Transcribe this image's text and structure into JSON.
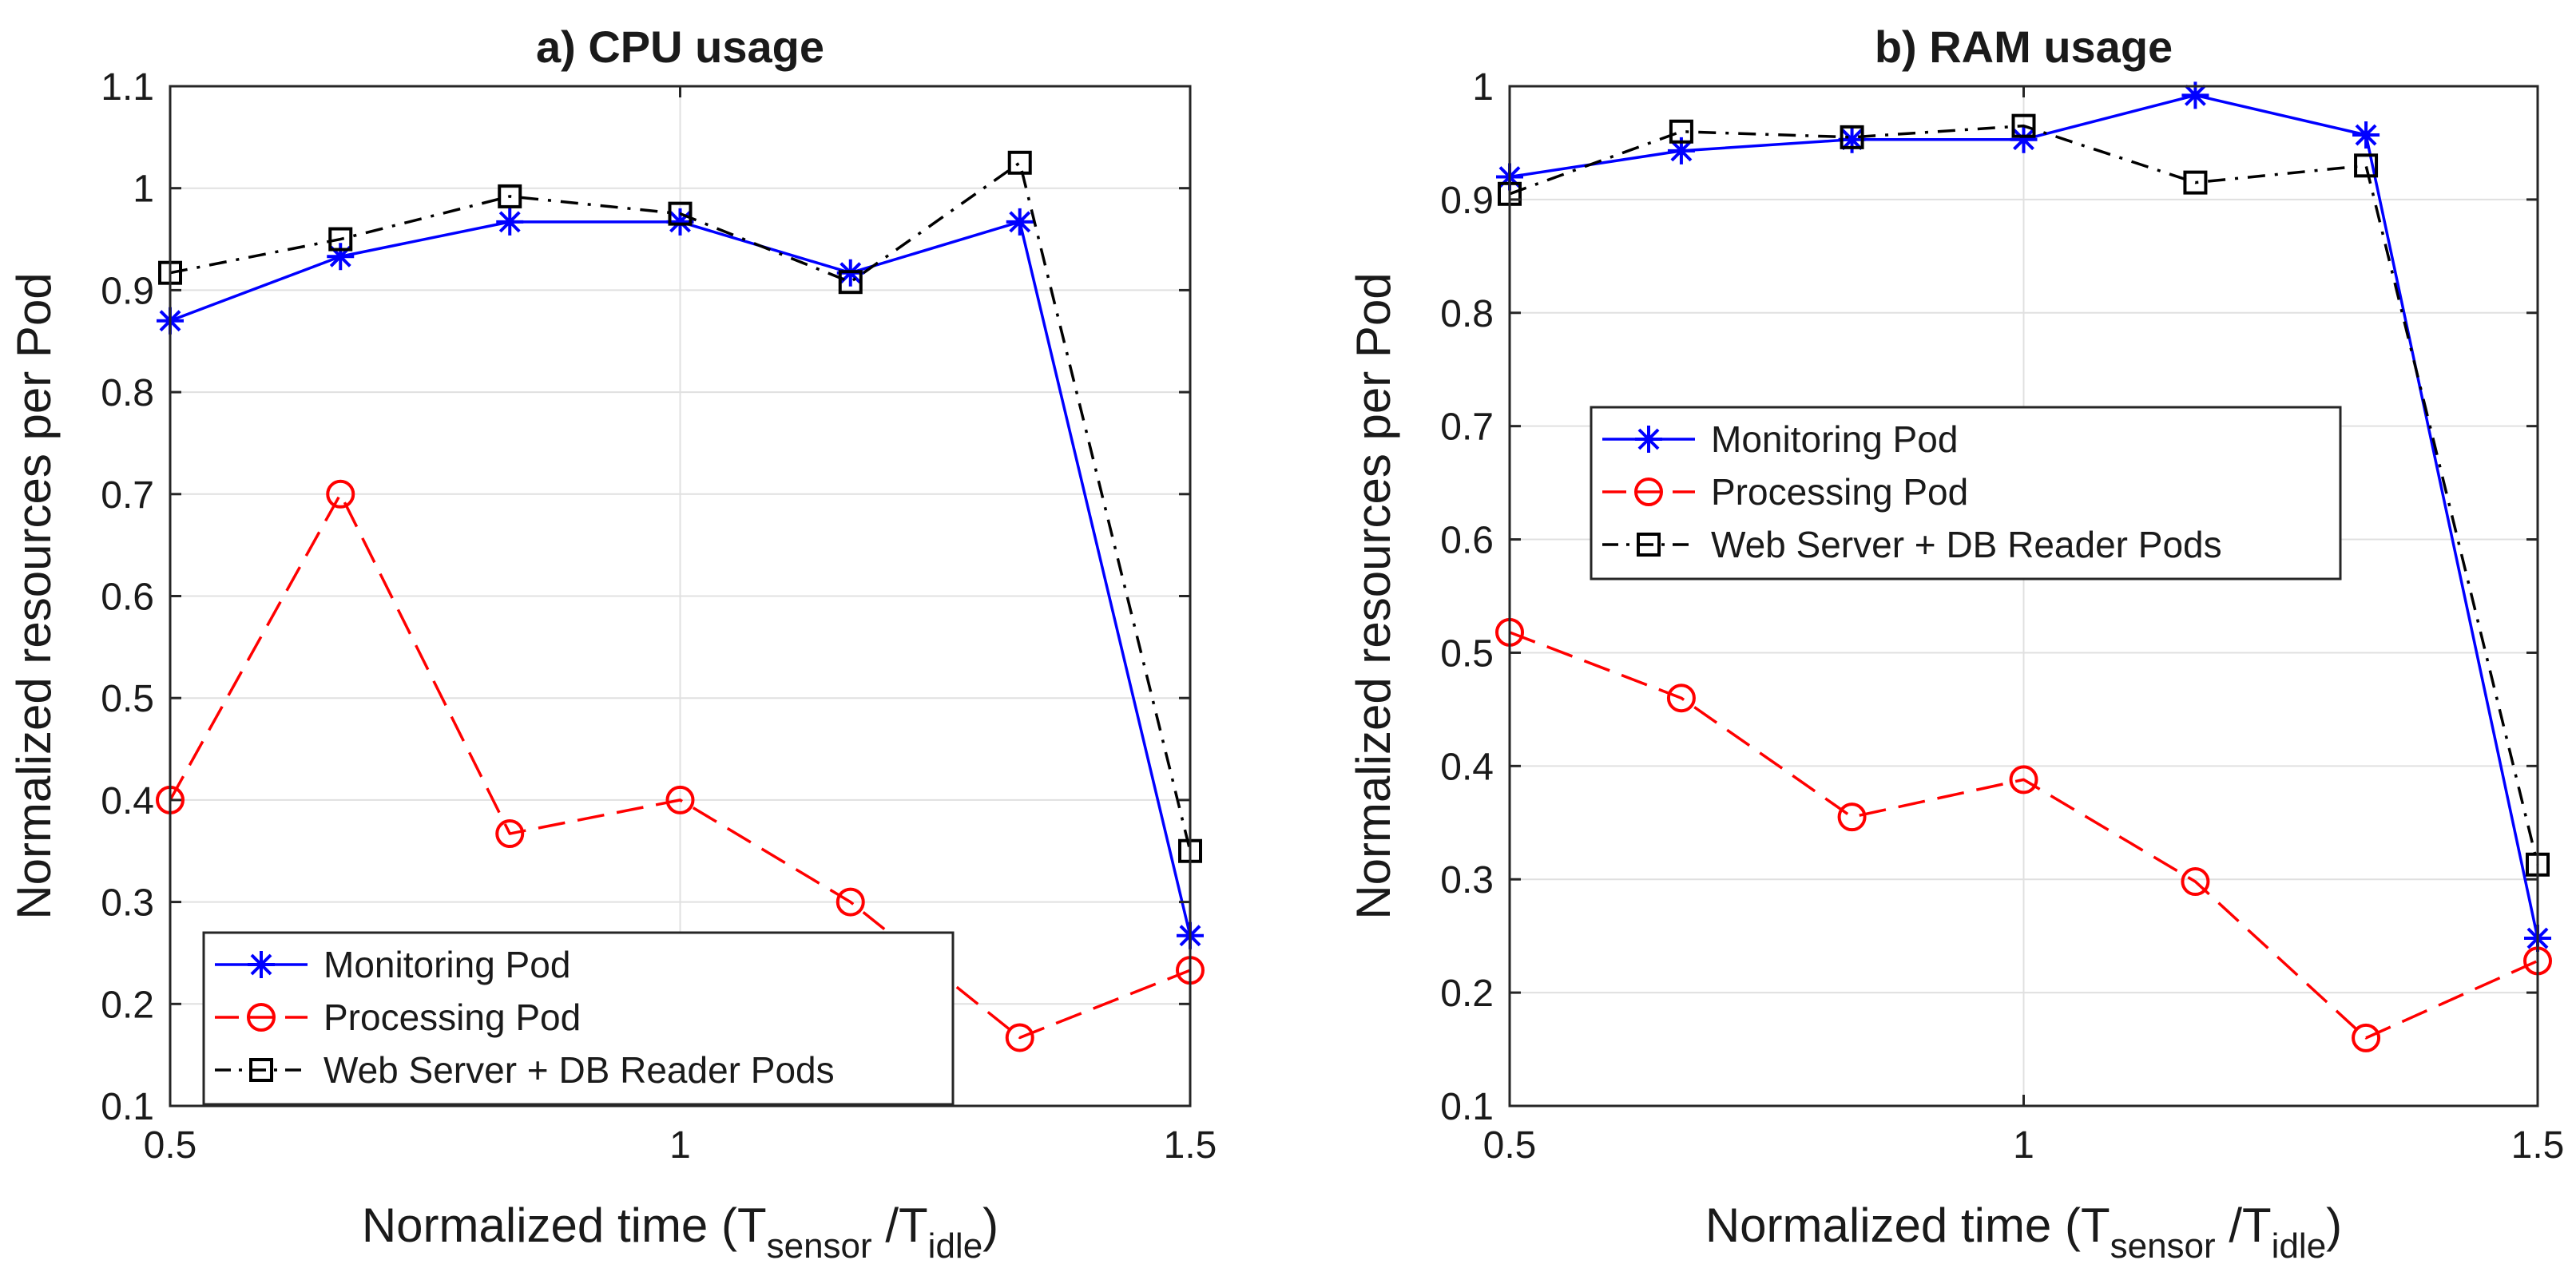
{
  "chart_data": [
    {
      "type": "line",
      "title": "a) CPU usage",
      "xlabel": {
        "main": "Normalized time (T",
        "sub1": "sensor",
        "mid": " /T",
        "sub2": "idle",
        "end": ")"
      },
      "ylabel": "Normalized resources per Pod",
      "xlim": [
        0.5,
        1.5
      ],
      "ylim": [
        0.1,
        1.1
      ],
      "xticks": [
        0.5,
        1,
        1.5
      ],
      "xtick_labels": [
        "0.5",
        "1",
        "1.5"
      ],
      "yticks": [
        0.1,
        0.2,
        0.3,
        0.4,
        0.5,
        0.6,
        0.7,
        0.8,
        0.9,
        1.0,
        1.1
      ],
      "ytick_labels": [
        "0.1",
        "0.2",
        "0.3",
        "0.4",
        "0.5",
        "0.6",
        "0.7",
        "0.8",
        "0.9",
        "1",
        "1.1"
      ],
      "grid": true,
      "legend_position": "bottom-center",
      "x": [
        0.5,
        0.667,
        0.833,
        1.0,
        1.167,
        1.333,
        1.5
      ],
      "series": [
        {
          "name": "Monitoring Pod",
          "color": "#0000ff",
          "marker": "star",
          "dash": "solid",
          "values": [
            0.87,
            0.933,
            0.967,
            0.967,
            0.917,
            0.967,
            0.267
          ]
        },
        {
          "name": "Processing Pod",
          "color": "#ff0000",
          "marker": "circle",
          "dash": "dashed",
          "values": [
            0.4,
            0.7,
            0.367,
            0.4,
            0.3,
            0.167,
            0.233
          ]
        },
        {
          "name": "Web Server + DB Reader Pods",
          "color": "#000000",
          "marker": "square",
          "dash": "dashdot",
          "values": [
            0.917,
            0.95,
            0.992,
            0.975,
            0.908,
            1.025,
            0.35
          ]
        }
      ]
    },
    {
      "type": "line",
      "title": "b) RAM usage",
      "xlabel": {
        "main": "Normalized time (T",
        "sub1": "sensor",
        "mid": " /T",
        "sub2": "idle",
        "end": ")"
      },
      "ylabel": "Normalized resources per Pod",
      "xlim": [
        0.5,
        1.5
      ],
      "ylim": [
        0.1,
        1.0
      ],
      "xticks": [
        0.5,
        1,
        1.5
      ],
      "xtick_labels": [
        "0.5",
        "1",
        "1.5"
      ],
      "yticks": [
        0.1,
        0.2,
        0.3,
        0.4,
        0.5,
        0.6,
        0.7,
        0.8,
        0.9,
        1.0
      ],
      "ytick_labels": [
        "0.1",
        "0.2",
        "0.3",
        "0.4",
        "0.5",
        "0.6",
        "0.7",
        "0.8",
        "0.9",
        "1"
      ],
      "grid": true,
      "legend_position": "middle-left",
      "x": [
        0.5,
        0.667,
        0.833,
        1.0,
        1.167,
        1.333,
        1.5
      ],
      "series": [
        {
          "name": "Monitoring Pod",
          "color": "#0000ff",
          "marker": "star",
          "dash": "solid",
          "values": [
            0.92,
            0.943,
            0.953,
            0.953,
            0.992,
            0.957,
            0.248
          ]
        },
        {
          "name": "Processing Pod",
          "color": "#ff0000",
          "marker": "circle",
          "dash": "dashed",
          "values": [
            0.518,
            0.46,
            0.355,
            0.388,
            0.298,
            0.16,
            0.228
          ]
        },
        {
          "name": "Web Server + DB Reader Pods",
          "color": "#000000",
          "marker": "square",
          "dash": "dashdot",
          "values": [
            0.905,
            0.96,
            0.955,
            0.965,
            0.915,
            0.93,
            0.313
          ]
        }
      ]
    }
  ]
}
